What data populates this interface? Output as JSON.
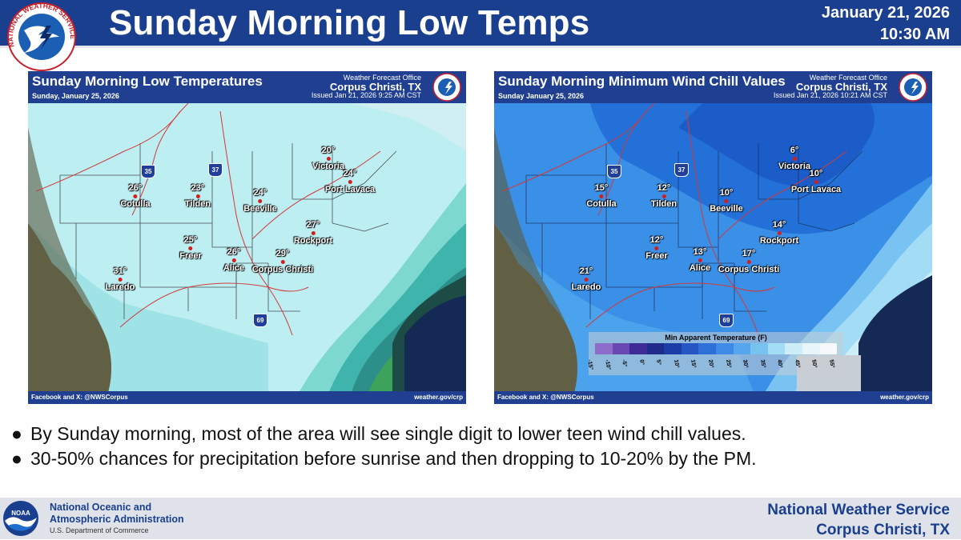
{
  "header": {
    "title": "Sunday Morning Low Temps",
    "date": "January 21, 2026",
    "time": "10:30 AM",
    "logo_text": "NATIONAL WEATHER SERVICE"
  },
  "left_panel": {
    "title": "Sunday Morning Low Temperatures",
    "subtitle": "Sunday, January 25, 2026",
    "office_line1": "Weather Forecast Office",
    "office_line2": "Corpus Christi, TX",
    "issued": "Issued Jan 21, 2026 9:25 AM CST",
    "footer_left": "Facebook and X: @NWSCorpus",
    "footer_right": "weather.gov/crp",
    "shields": [
      "35",
      "37",
      "69"
    ],
    "cities": [
      {
        "name": "Cotulla",
        "value": "26°"
      },
      {
        "name": "Tilden",
        "value": "23°"
      },
      {
        "name": "Beeville",
        "value": "24°"
      },
      {
        "name": "Victoria",
        "value": "20°"
      },
      {
        "name": "Port Lavaca",
        "value": "24°"
      },
      {
        "name": "Rockport",
        "value": "27°"
      },
      {
        "name": "Freer",
        "value": "25°"
      },
      {
        "name": "Alice",
        "value": "26°"
      },
      {
        "name": "Corpus Christi",
        "value": "29°"
      },
      {
        "name": "Laredo",
        "value": "31°"
      }
    ]
  },
  "right_panel": {
    "title": "Sunday Morning Minimum Wind Chill Values",
    "subtitle": "Sunday January 25, 2026",
    "office_line1": "Weather Forecast Office",
    "office_line2": "Corpus Christi, TX",
    "issued": "Issued Jan 21, 2026 10:21 AM CST",
    "footer_left": "Facebook and X: @NWSCorpus",
    "footer_right": "weather.gov/crp",
    "shields": [
      "35",
      "37",
      "69"
    ],
    "cities": [
      {
        "name": "Cotulla",
        "value": "15°"
      },
      {
        "name": "Tilden",
        "value": "12°"
      },
      {
        "name": "Beeville",
        "value": "10°"
      },
      {
        "name": "Victoria",
        "value": "6°"
      },
      {
        "name": "Port Lavaca",
        "value": "10°"
      },
      {
        "name": "Rockport",
        "value": "14°"
      },
      {
        "name": "Freer",
        "value": "12°"
      },
      {
        "name": "Alice",
        "value": "13°"
      },
      {
        "name": "Corpus Christi",
        "value": "17°"
      },
      {
        "name": "Laredo",
        "value": "21°"
      }
    ],
    "legend": {
      "title": "Min Apparent Temperature (F)",
      "labels": [
        "-15°",
        "-10°",
        "-5°",
        "0°",
        "5°",
        "10°",
        "15°",
        "20°",
        "25°",
        "30°",
        "35°",
        "40°",
        "45°",
        "50°",
        "55°"
      ],
      "colors": [
        "#8e6cc9",
        "#6a48b3",
        "#3f2b98",
        "#1f2a8a",
        "#1d3da6",
        "#2556c4",
        "#2f6fd8",
        "#3f8ae6",
        "#56a6ee",
        "#78c2f2",
        "#a2dcf5",
        "#cdeef8",
        "#e8f6fa",
        "#f5f9fb"
      ]
    }
  },
  "bullets": [
    "By Sunday morning, most of the area will see single digit to lower teen wind chill values.",
    "30-50% chances for precipitation before sunrise and then dropping to 10-20% by the PM."
  ],
  "footer": {
    "noaa_logo_text": "NOAA",
    "noaa_line1": "National Oceanic and",
    "noaa_line2": "Atmospheric Administration",
    "noaa_dept": "U.S. Department of Commerce",
    "nws_line1": "National Weather Service",
    "nws_line2": "Corpus Christi, TX"
  },
  "colors": {
    "header_blue": "#1a3f8f",
    "city_dot": "#d31e1e"
  }
}
